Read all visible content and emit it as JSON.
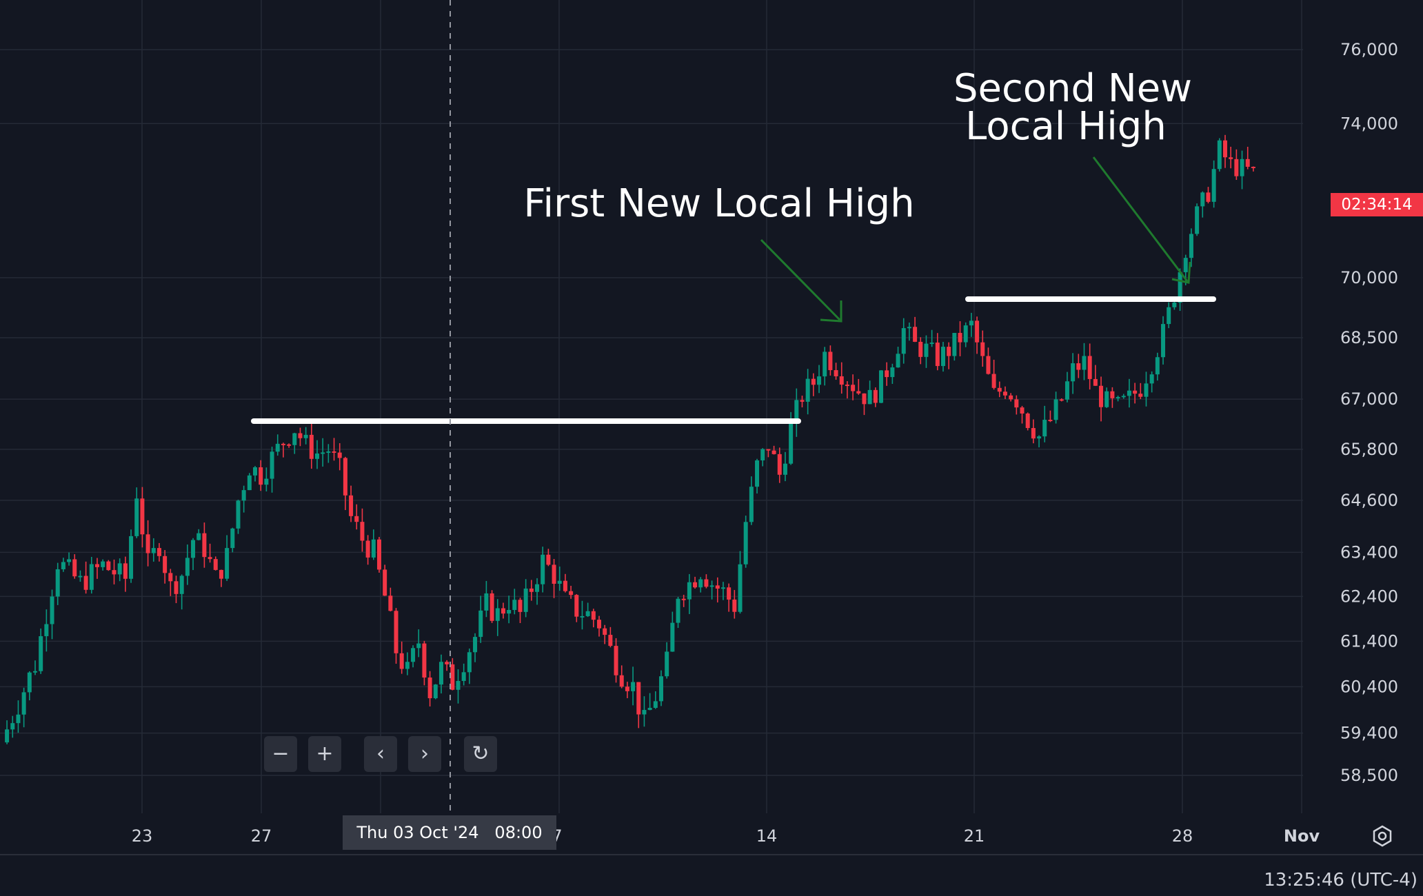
{
  "chart_data": {
    "type": "candlestick",
    "y_axis": {
      "tick_labels": [
        "76,000",
        "74,000",
        "70,000",
        "68,500",
        "67,000",
        "65,800",
        "64,600",
        "63,400",
        "62,400",
        "61,400",
        "60,400",
        "59,400",
        "58,500"
      ]
    },
    "x_axis": {
      "tick_labels": [
        "23",
        "27",
        "14",
        "21",
        "28",
        "Nov"
      ]
    },
    "close_path": [
      [
        0,
        59200
      ],
      [
        6,
        60900
      ],
      [
        10,
        63200
      ],
      [
        14,
        62700
      ],
      [
        18,
        63100
      ],
      [
        22,
        62800
      ],
      [
        24,
        64800
      ],
      [
        26,
        63100
      ],
      [
        28,
        63600
      ],
      [
        30,
        62600
      ],
      [
        32,
        62900
      ],
      [
        34,
        63700
      ],
      [
        36,
        63500
      ],
      [
        38,
        62800
      ],
      [
        40,
        63300
      ],
      [
        42,
        64600
      ],
      [
        44,
        65400
      ],
      [
        46,
        65200
      ],
      [
        48,
        65600
      ],
      [
        50,
        66000
      ],
      [
        52,
        66300
      ],
      [
        54,
        65900
      ],
      [
        56,
        65700
      ],
      [
        58,
        65800
      ],
      [
        60,
        65300
      ],
      [
        62,
        64200
      ],
      [
        64,
        63700
      ],
      [
        66,
        63400
      ],
      [
        68,
        62400
      ],
      [
        70,
        61200
      ],
      [
        72,
        60700
      ],
      [
        74,
        61400
      ],
      [
        76,
        60300
      ],
      [
        78,
        60800
      ],
      [
        80,
        60500
      ],
      [
        82,
        61000
      ],
      [
        84,
        61500
      ],
      [
        86,
        62200
      ],
      [
        88,
        62000
      ],
      [
        90,
        62300
      ],
      [
        92,
        62000
      ],
      [
        94,
        62600
      ],
      [
        96,
        63200
      ],
      [
        98,
        62900
      ],
      [
        100,
        62300
      ],
      [
        102,
        62100
      ],
      [
        104,
        62000
      ],
      [
        106,
        61800
      ],
      [
        108,
        61200
      ],
      [
        110,
        60700
      ],
      [
        112,
        60400
      ],
      [
        114,
        59600
      ],
      [
        116,
        60200
      ],
      [
        118,
        60900
      ],
      [
        120,
        62500
      ],
      [
        122,
        62700
      ],
      [
        124,
        63000
      ],
      [
        126,
        62700
      ],
      [
        128,
        62500
      ],
      [
        130,
        62200
      ],
      [
        132,
        64100
      ],
      [
        134,
        65400
      ],
      [
        136,
        65900
      ],
      [
        138,
        65200
      ],
      [
        140,
        66300
      ],
      [
        142,
        67100
      ],
      [
        144,
        67400
      ],
      [
        146,
        68100
      ],
      [
        148,
        67800
      ],
      [
        150,
        67500
      ],
      [
        152,
        67200
      ],
      [
        154,
        67000
      ],
      [
        156,
        67400
      ],
      [
        158,
        68000
      ],
      [
        160,
        68700
      ],
      [
        162,
        68300
      ],
      [
        164,
        68200
      ],
      [
        166,
        68000
      ],
      [
        168,
        68200
      ],
      [
        170,
        68500
      ],
      [
        172,
        68800
      ],
      [
        174,
        67900
      ],
      [
        176,
        67100
      ],
      [
        178,
        67300
      ],
      [
        180,
        67000
      ],
      [
        182,
        66500
      ],
      [
        184,
        66100
      ],
      [
        186,
        66500
      ],
      [
        188,
        67000
      ],
      [
        190,
        67700
      ],
      [
        192,
        67900
      ],
      [
        194,
        67200
      ],
      [
        196,
        66900
      ],
      [
        198,
        66800
      ],
      [
        200,
        67000
      ],
      [
        202,
        67300
      ],
      [
        204,
        67900
      ],
      [
        206,
        68600
      ],
      [
        208,
        69600
      ],
      [
        210,
        70800
      ],
      [
        212,
        71600
      ],
      [
        214,
        72200
      ],
      [
        216,
        73300
      ],
      [
        218,
        72900
      ],
      [
        220,
        72800
      ],
      [
        222,
        72700
      ]
    ],
    "annotations": {
      "first_high": "First New Local High",
      "second_high_line1": "Second New",
      "second_high_line2": "Local High"
    },
    "current_price_countdown": "02:34:14",
    "crosshair_date_label": "Thu 03 Oct '24",
    "crosshair_time_label": "08:00",
    "x_axis_clipped_label": "7",
    "colors": {
      "background": "#131722",
      "grid": "#252a36",
      "up": "#089981",
      "down": "#f23645",
      "annotation_arrow": "#1f7a2e",
      "resistance_line": "#ffffff"
    },
    "grid": true
  },
  "toolbar": {
    "zoom_out": "−",
    "zoom_in": "+",
    "scroll_left": "‹",
    "scroll_right": "›",
    "reset": "↻"
  },
  "footer": {
    "clock": "13:25:46 (UTC-4)"
  },
  "icons": {
    "settings": "settings-gear-icon"
  }
}
